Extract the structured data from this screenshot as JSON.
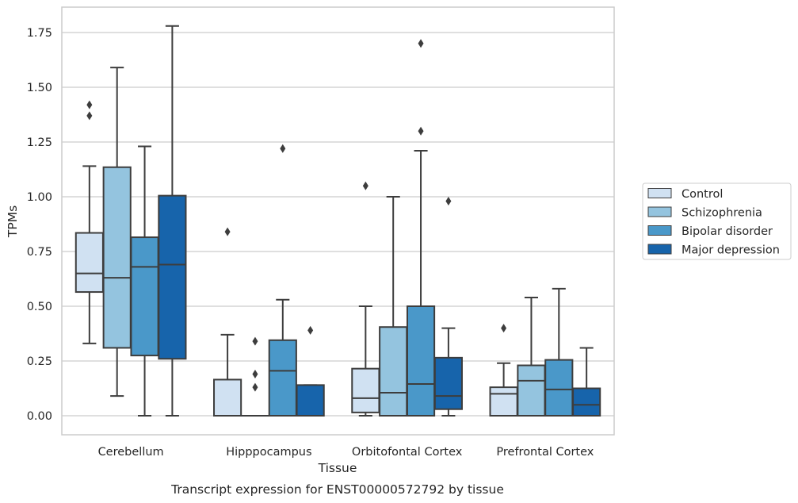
{
  "caption": "Transcript expression for ENST00000572792 by tissue",
  "chart_data": {
    "type": "box",
    "title": "",
    "xlabel": "Tissue",
    "ylabel": "TPMs",
    "ylim": [
      -0.085,
      1.87
    ],
    "yticks": [
      0.0,
      0.25,
      0.5,
      0.75,
      1.0,
      1.25,
      1.5,
      1.75
    ],
    "ytick_labels": [
      "0.00",
      "0.25",
      "0.50",
      "0.75",
      "1.00",
      "1.25",
      "1.50",
      "1.75"
    ],
    "grid": "horizontal",
    "legend_position": "right",
    "categories": [
      "Cerebellum",
      "Hipppocampus",
      "Orbitofontal Cortex",
      "Prefrontal Cortex"
    ],
    "series": [
      {
        "name": "Control",
        "color": "#d0e1f2",
        "boxes": [
          {
            "whislo": 0.33,
            "q1": 0.565,
            "med": 0.65,
            "q3": 0.835,
            "whishi": 1.14,
            "fliers": [
              1.37,
              1.42
            ]
          },
          {
            "whislo": 0.0,
            "q1": 0.0,
            "med": 0.0,
            "q3": 0.165,
            "whishi": 0.37,
            "fliers": [
              0.84
            ]
          },
          {
            "whislo": 0.0,
            "q1": 0.015,
            "med": 0.08,
            "q3": 0.215,
            "whishi": 0.5,
            "fliers": [
              1.05
            ]
          },
          {
            "whislo": 0.0,
            "q1": 0.0,
            "med": 0.1,
            "q3": 0.13,
            "whishi": 0.24,
            "fliers": [
              0.4
            ]
          }
        ]
      },
      {
        "name": "Schizophrenia",
        "color": "#94c4df",
        "boxes": [
          {
            "whislo": 0.09,
            "q1": 0.31,
            "med": 0.63,
            "q3": 1.135,
            "whishi": 1.59,
            "fliers": []
          },
          {
            "whislo": 0.0,
            "q1": 0.0,
            "med": 0.0,
            "q3": 0.0,
            "whishi": 0.0,
            "fliers": [
              0.13,
              0.19,
              0.34
            ]
          },
          {
            "whislo": 0.0,
            "q1": 0.0,
            "med": 0.105,
            "q3": 0.405,
            "whishi": 1.0,
            "fliers": []
          },
          {
            "whislo": 0.0,
            "q1": 0.0,
            "med": 0.16,
            "q3": 0.23,
            "whishi": 0.54,
            "fliers": []
          }
        ]
      },
      {
        "name": "Bipolar disorder",
        "color": "#4a98c9",
        "boxes": [
          {
            "whislo": 0.0,
            "q1": 0.275,
            "med": 0.68,
            "q3": 0.815,
            "whishi": 1.23,
            "fliers": []
          },
          {
            "whislo": 0.0,
            "q1": 0.0,
            "med": 0.205,
            "q3": 0.345,
            "whishi": 0.53,
            "fliers": [
              1.22
            ]
          },
          {
            "whislo": 0.0,
            "q1": 0.0,
            "med": 0.145,
            "q3": 0.5,
            "whishi": 1.21,
            "fliers": [
              1.3,
              1.7
            ]
          },
          {
            "whislo": 0.0,
            "q1": 0.0,
            "med": 0.12,
            "q3": 0.255,
            "whishi": 0.58,
            "fliers": []
          }
        ]
      },
      {
        "name": "Major depression",
        "color": "#1764ab",
        "boxes": [
          {
            "whislo": 0.0,
            "q1": 0.26,
            "med": 0.69,
            "q3": 1.005,
            "whishi": 1.78,
            "fliers": []
          },
          {
            "whislo": 0.0,
            "q1": 0.0,
            "med": 0.0,
            "q3": 0.14,
            "whishi": 0.14,
            "fliers": [
              0.39
            ]
          },
          {
            "whislo": 0.0,
            "q1": 0.03,
            "med": 0.09,
            "q3": 0.265,
            "whishi": 0.4,
            "fliers": [
              0.98
            ]
          },
          {
            "whislo": 0.0,
            "q1": 0.0,
            "med": 0.05,
            "q3": 0.125,
            "whishi": 0.31,
            "fliers": []
          }
        ]
      }
    ]
  }
}
